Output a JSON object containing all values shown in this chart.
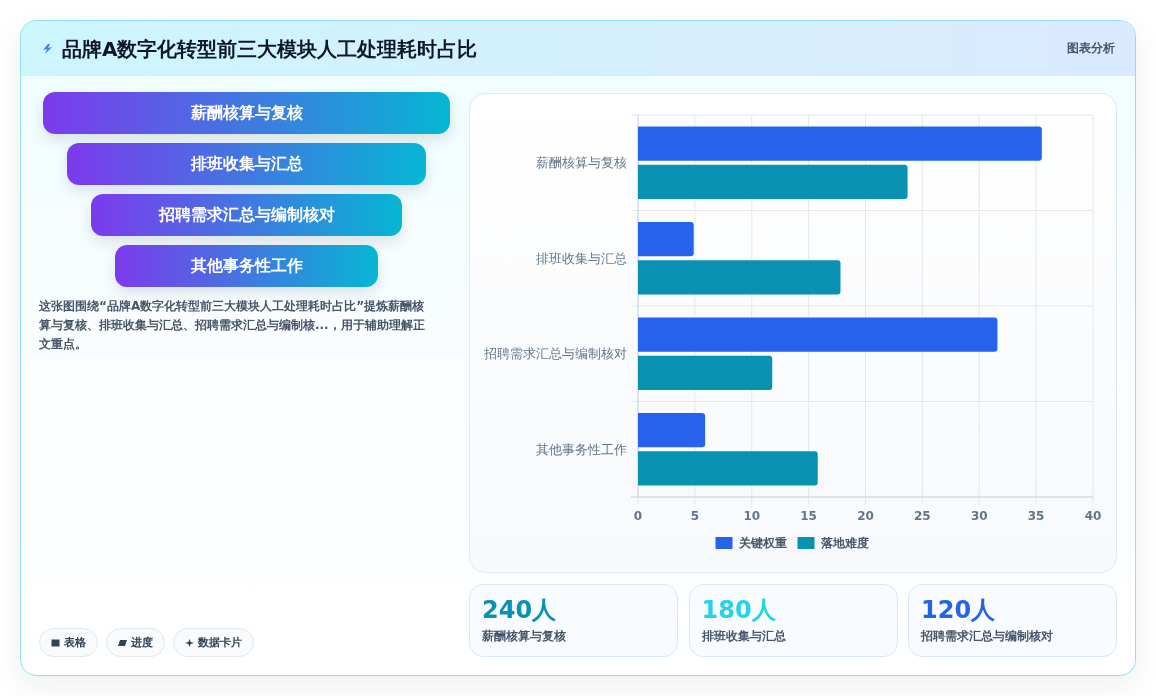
{
  "chart_data": [
    {
      "type": "other",
      "title": "品牌A数字化转型前三大模块人工处理耗时占比",
      "subtitle": "图表分析",
      "categories": [
        "薪酬核算与复核",
        "排班收集与汇总",
        "招聘需求汇总与编制核对",
        "其他事务性工作"
      ],
      "annotations": [
        "这张图围绕“品牌A数字化转型前三大模块人工处理耗时占比”提炼薪酬核算与复核、排班收集与汇总、招聘需求汇总与编制核...，用于辅助理解正文重点。",
        "表格",
        "进度",
        "数据卡片"
      ]
    },
    {
      "type": "bar",
      "orientation": "horizontal",
      "categories": [
        "薪酬核算与复核",
        "排班收集与汇总",
        "招聘需求汇总与编制核对",
        "其他事务性工作"
      ],
      "series": [
        {
          "name": "关键权重",
          "color": "#2563eb",
          "values": [
            35.5,
            4.9,
            31.6,
            5.9
          ]
        },
        {
          "name": "落地难度",
          "color": "#0891b2",
          "values": [
            23.7,
            17.8,
            11.8,
            15.8
          ]
        }
      ],
      "xlim": [
        0,
        40
      ],
      "xticks": [
        0,
        5,
        10,
        15,
        20,
        25,
        30,
        35,
        40
      ],
      "grid": true,
      "legend": "bottom"
    },
    {
      "type": "other",
      "categories": [
        "薪酬核算与复核",
        "排班收集与汇总",
        "招聘需求汇总与编制核对"
      ],
      "value_labels": [
        "240人",
        "180人",
        "120人"
      ]
    }
  ]
}
